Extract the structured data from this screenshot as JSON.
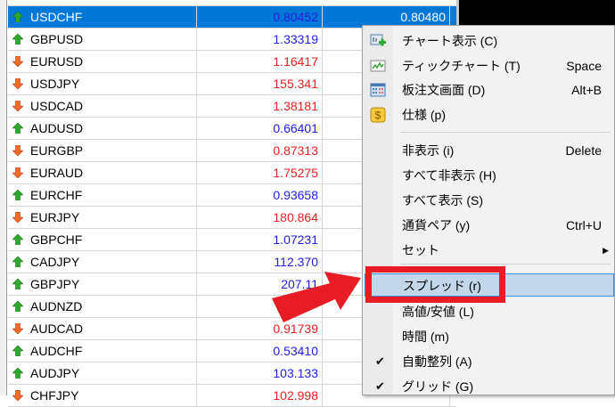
{
  "market_watch": {
    "rows": [
      {
        "symbol": "USDCHF",
        "bid": "0.80452",
        "ask": "0.80480",
        "dir": "up",
        "selected": true
      },
      {
        "symbol": "GBPUSD",
        "bid": "1.33319",
        "dir": "up"
      },
      {
        "symbol": "EURUSD",
        "bid": "1.16417",
        "dir": "down"
      },
      {
        "symbol": "USDJPY",
        "bid": "155.341",
        "dir": "down"
      },
      {
        "symbol": "USDCAD",
        "bid": "1.38181",
        "dir": "down"
      },
      {
        "symbol": "AUDUSD",
        "bid": "0.66401",
        "dir": "up"
      },
      {
        "symbol": "EURGBP",
        "bid": "0.87313",
        "dir": "down"
      },
      {
        "symbol": "EURAUD",
        "bid": "1.75275",
        "dir": "down"
      },
      {
        "symbol": "EURCHF",
        "bid": "0.93658",
        "dir": "up"
      },
      {
        "symbol": "EURJPY",
        "bid": "180.864",
        "dir": "down"
      },
      {
        "symbol": "GBPCHF",
        "bid": "1.07231",
        "dir": "up"
      },
      {
        "symbol": "CADJPY",
        "bid": "112.370",
        "dir": "up"
      },
      {
        "symbol": "GBPJPY",
        "bid": "207.11",
        "dir": "up"
      },
      {
        "symbol": "AUDNZD",
        "bid": "",
        "dir": "up"
      },
      {
        "symbol": "AUDCAD",
        "bid": "0.91739",
        "dir": "down"
      },
      {
        "symbol": "AUDCHF",
        "bid": "0.53410",
        "dir": "up"
      },
      {
        "symbol": "AUDJPY",
        "bid": "103.133",
        "dir": "up"
      },
      {
        "symbol": "CHFJPY",
        "bid": "102.998",
        "dir": "down"
      }
    ]
  },
  "colors": {
    "up": "#2020e0",
    "down": "#e82020",
    "selected": "#0078d7",
    "highlight_box": "#e81c24"
  },
  "context_menu": {
    "items": [
      {
        "label": "チャート表示 (C)",
        "shortcut": "",
        "icon": "new-chart-icon"
      },
      {
        "label": "ティックチャート (T)",
        "shortcut": "Space",
        "icon": "tick-chart-icon"
      },
      {
        "label": "板注文画面 (D)",
        "shortcut": "Alt+B",
        "icon": "depth-of-market-icon"
      },
      {
        "label": "仕様 (p)",
        "shortcut": "",
        "icon": "specification-dollar-icon"
      },
      {
        "label": "非表示 (i)",
        "shortcut": "Delete"
      },
      {
        "label": "すべて非表示 (H)",
        "shortcut": ""
      },
      {
        "label": "すべて表示 (S)",
        "shortcut": ""
      },
      {
        "label": "通貨ペア (y)",
        "shortcut": "Ctrl+U"
      },
      {
        "label": "セット",
        "shortcut": "",
        "submenu": true
      },
      {
        "label": "スプレッド (r)",
        "shortcut": "",
        "highlighted": true
      },
      {
        "label": "高値/安値 (L)",
        "shortcut": ""
      },
      {
        "label": "時間 (m)",
        "shortcut": ""
      },
      {
        "label": "自動整列 (A)",
        "shortcut": "",
        "checked": true
      },
      {
        "label": "グリッド (G)",
        "shortcut": "",
        "checked": true
      }
    ]
  }
}
